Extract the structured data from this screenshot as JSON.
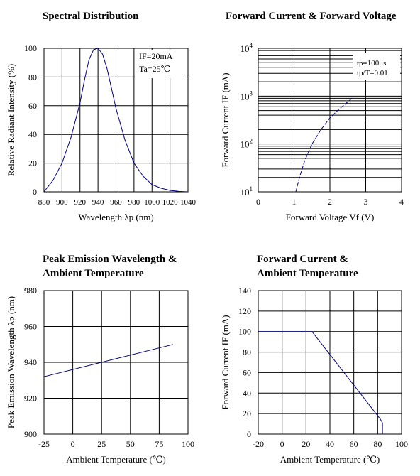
{
  "chart_data": [
    {
      "type": "line",
      "title": "Spectral Distribution",
      "xlabel": "Wavelength λp (nm)",
      "ylabel": "Relative Radiant Intensity (%)",
      "xlim": [
        880,
        1040
      ],
      "ylim": [
        0,
        100
      ],
      "xticks": [
        "880",
        "900",
        "920",
        "940",
        "960",
        "980",
        "1000",
        "1020",
        "1040"
      ],
      "yticks": [
        "0",
        "20",
        "40",
        "60",
        "80",
        "100"
      ],
      "grid": true,
      "annotations": [
        "IF=20mA",
        "Ta=25℃"
      ],
      "series": [
        {
          "x": [
            880,
            890,
            900,
            910,
            920,
            925,
            930,
            935,
            940,
            945,
            950,
            955,
            960,
            970,
            980,
            990,
            1000,
            1010,
            1020,
            1030,
            1040
          ],
          "y": [
            0,
            8,
            20,
            38,
            62,
            78,
            92,
            99,
            100,
            96,
            86,
            72,
            58,
            36,
            20,
            11,
            5,
            2.5,
            1,
            0.3,
            0
          ],
          "color": "#000080"
        }
      ]
    },
    {
      "type": "line",
      "title": "Forward Current & Forward Voltage",
      "xlabel": "Forward Voltage Vf (V)",
      "ylabel": "Forward Current IF (mA)",
      "xlim": [
        0,
        4
      ],
      "ylim": [
        10,
        10000
      ],
      "yscale": "log",
      "xticks": [
        "0",
        "1",
        "2",
        "3",
        "4"
      ],
      "yticks_base": "10",
      "yticks_exp": [
        "1",
        "2",
        "3",
        "4"
      ],
      "grid": true,
      "annotations": [
        "tp=100μs",
        "tp/T=0.01"
      ],
      "series": [
        {
          "x": [
            1.05,
            1.15,
            1.3,
            1.5,
            1.75,
            2.0,
            2.25,
            2.5,
            2.65
          ],
          "y": [
            10,
            20,
            45,
            100,
            200,
            350,
            530,
            760,
            950
          ],
          "color": "#000080",
          "dash": true
        }
      ]
    },
    {
      "type": "line",
      "title": "Peak Emission Wavelength & Ambient Temperature",
      "title_lines": [
        "Peak Emission Wavelength &",
        "Ambient Temperature"
      ],
      "xlabel": "Ambient Temperature (℃)",
      "ylabel": "Peak Emission Wavelength λp (nm)",
      "xlim": [
        -25,
        100
      ],
      "ylim": [
        900,
        980
      ],
      "xticks": [
        "-25",
        "0",
        "25",
        "50",
        "75",
        "100"
      ],
      "yticks": [
        "900",
        "920",
        "940",
        "960",
        "980"
      ],
      "grid": true,
      "series": [
        {
          "x": [
            -25,
            87
          ],
          "y": [
            932,
            950
          ],
          "color": "#000080"
        }
      ]
    },
    {
      "type": "line",
      "title": "Forward Current & Ambient Temperature",
      "title_lines": [
        "Forward Current &",
        "Ambient Temperature"
      ],
      "xlabel": "Ambient Temperature (℃)",
      "ylabel": "Forward Current IF (mA)",
      "xlim": [
        -20,
        100
      ],
      "ylim": [
        0,
        140
      ],
      "xticks": [
        "-20",
        "0",
        "20",
        "40",
        "60",
        "80",
        "100"
      ],
      "yticks": [
        "0",
        "20",
        "40",
        "60",
        "80",
        "100",
        "120",
        "140"
      ],
      "grid": true,
      "series": [
        {
          "x": [
            -20,
            25,
            82,
            84,
            84
          ],
          "y": [
            100,
            100,
            15,
            11,
            0
          ],
          "color": "#000080"
        }
      ]
    }
  ]
}
